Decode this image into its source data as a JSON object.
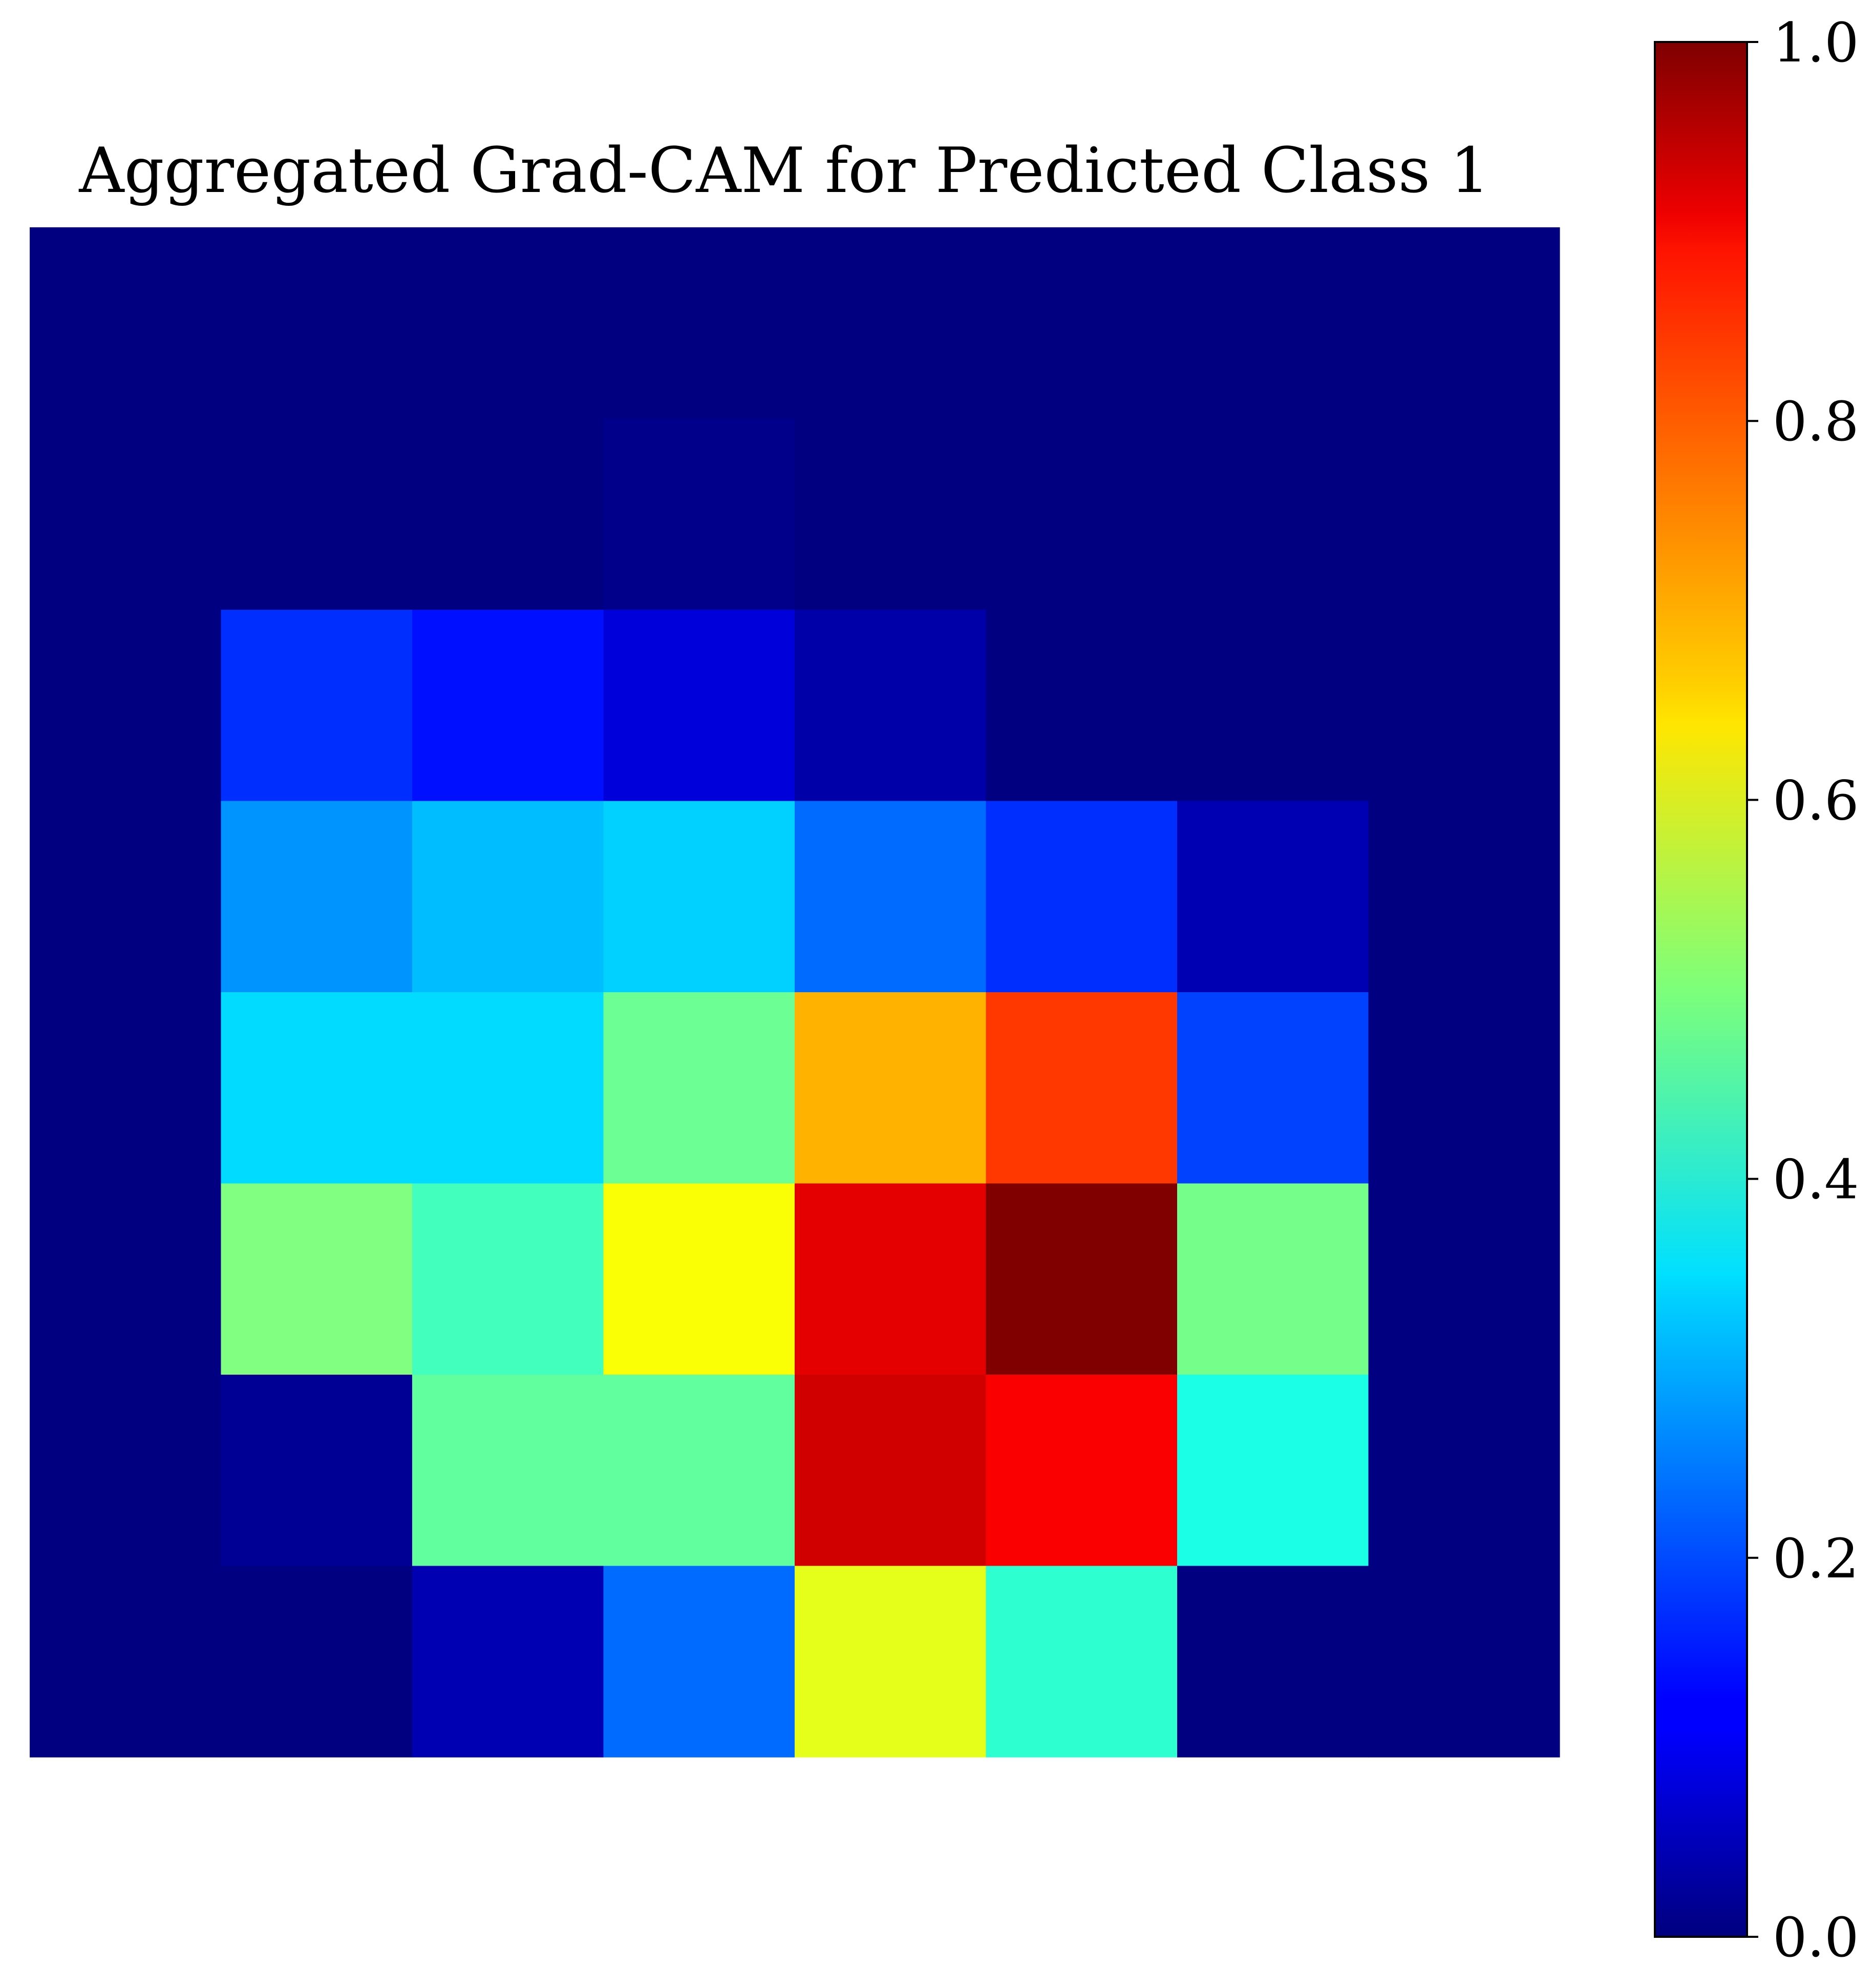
{
  "chart_data": {
    "type": "heatmap",
    "title": "Aggregated Grad-CAM for Predicted Class 1",
    "colormap": "jet",
    "vmin": 0.0,
    "vmax": 1.0,
    "xlabel": "",
    "ylabel": "",
    "axes_visible": false,
    "grid": false,
    "colorbar": {
      "position": "right",
      "ticks": [
        0.0,
        0.2,
        0.4,
        0.6,
        0.8,
        1.0
      ],
      "tick_labels": [
        "0.0",
        "0.2",
        "0.4",
        "0.6",
        "0.8",
        "1.0"
      ]
    },
    "values": [
      [
        0.0,
        0.0,
        0.0,
        0.0,
        0.0,
        0.0,
        0.0,
        0.0
      ],
      [
        0.0,
        0.0,
        0.0,
        0.01,
        0.0,
        0.0,
        0.0,
        0.0
      ],
      [
        0.0,
        0.17,
        0.14,
        0.09,
        0.04,
        0.0,
        0.0,
        0.0
      ],
      [
        0.0,
        0.27,
        0.31,
        0.33,
        0.23,
        0.17,
        0.05,
        0.0
      ],
      [
        0.0,
        0.34,
        0.34,
        0.48,
        0.7,
        0.82,
        0.19,
        0.0
      ],
      [
        0.0,
        0.5,
        0.44,
        0.62,
        0.9,
        1.0,
        0.49,
        0.0
      ],
      [
        0.0,
        0.02,
        0.47,
        0.47,
        0.92,
        0.88,
        0.4,
        0.0
      ],
      [
        0.0,
        0.0,
        0.05,
        0.23,
        0.6,
        0.42,
        0.0,
        0.0
      ]
    ]
  }
}
